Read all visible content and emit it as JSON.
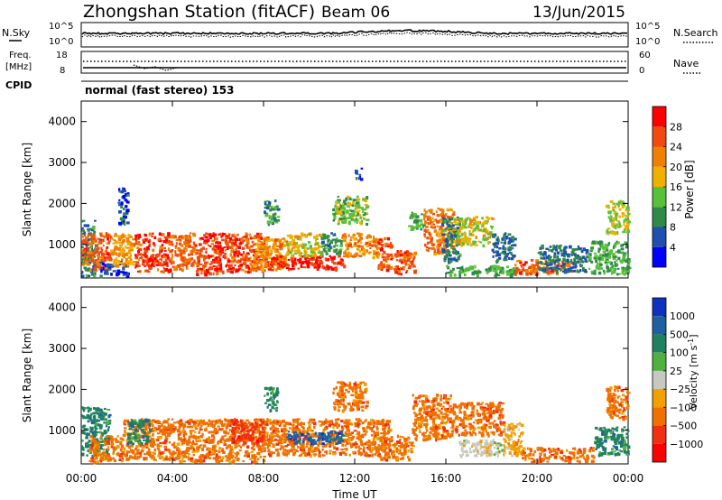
{
  "header": {
    "station": "Zhongshan Station (fitACF)",
    "beam": "Beam 06",
    "date": "13/Jun/2015"
  },
  "top_panels": {
    "nsky_label": "N.Sky",
    "nsearch_label": "N.Search",
    "nsky_ticks": [
      "10^5",
      "10^0"
    ],
    "nsearch_ticks": [
      "10^5",
      "10^0"
    ],
    "freq_label_1": "Freq.",
    "freq_label_2": "[MHz]",
    "freq_ticks": [
      "18",
      "8"
    ],
    "nave_label": "Nave",
    "nave_ticks": [
      "60",
      "0"
    ],
    "cpid_label": "CPID",
    "cpid_text": "normal (fast stereo) 153"
  },
  "colors": {
    "power_scale": [
      "#0000ff",
      "#1f4fb0",
      "#2f8a48",
      "#59c03a",
      "#f0b000",
      "#f08000",
      "#f04a10",
      "#ff0000"
    ],
    "velocity_scale": [
      "#1030c0",
      "#2060a0",
      "#208060",
      "#50b040",
      "#c8c8c0",
      "#f0a000",
      "#f07000",
      "#f03010",
      "#ff0000"
    ]
  },
  "chart_data": [
    {
      "type": "heatmap",
      "name": "power",
      "xlabel": "Time UT",
      "ylabel": "Slant Range [km]",
      "xlim": [
        0,
        24
      ],
      "ylim": [
        180,
        4500
      ],
      "x_ticks": [
        "00:00",
        "04:00",
        "08:00",
        "12:00",
        "16:00",
        "20:00",
        "00:00"
      ],
      "y_ticks": [
        "1000",
        "2000",
        "3000",
        "4000"
      ],
      "colorbar_label": "Power [dB]",
      "colorbar_ticks": [
        "4",
        "8",
        "12",
        "16",
        "20",
        "24",
        "28"
      ],
      "clim": [
        0,
        32
      ],
      "regions": [
        {
          "t": [
            0.0,
            0.6
          ],
          "r": [
            250,
            1600
          ],
          "v": 9
        },
        {
          "t": [
            0.0,
            1.3
          ],
          "r": [
            400,
            1300
          ],
          "v": 25
        },
        {
          "t": [
            0.8,
            2.0
          ],
          "r": [
            250,
            600
          ],
          "v": 6
        },
        {
          "t": [
            1.3,
            2.3
          ],
          "r": [
            500,
            1300
          ],
          "v": 20
        },
        {
          "t": [
            2.3,
            3.9
          ],
          "r": [
            350,
            1300
          ],
          "v": 27
        },
        {
          "t": [
            3.9,
            5.0
          ],
          "r": [
            400,
            1300
          ],
          "v": 24
        },
        {
          "t": [
            5.0,
            6.5
          ],
          "r": [
            300,
            1300
          ],
          "v": 27
        },
        {
          "t": [
            6.5,
            8.2
          ],
          "r": [
            350,
            1300
          ],
          "v": 26
        },
        {
          "t": [
            7.5,
            9.0
          ],
          "r": [
            400,
            1200
          ],
          "v": 21
        },
        {
          "t": [
            8.2,
            11.5
          ],
          "r": [
            400,
            750
          ],
          "v": 29
        },
        {
          "t": [
            9.0,
            10.5
          ],
          "r": [
            750,
            1300
          ],
          "v": 18
        },
        {
          "t": [
            10.5,
            11.4
          ],
          "r": [
            800,
            1300
          ],
          "v": 11
        },
        {
          "t": [
            11.4,
            13.0
          ],
          "r": [
            700,
            1300
          ],
          "v": 22
        },
        {
          "t": [
            13.0,
            13.6
          ],
          "r": [
            400,
            1200
          ],
          "v": 25
        },
        {
          "t": [
            13.7,
            14.6
          ],
          "r": [
            300,
            900
          ],
          "v": 26
        },
        {
          "t": [
            14.3,
            15.0
          ],
          "r": [
            1400,
            1800
          ],
          "v": 12
        },
        {
          "t": [
            15.0,
            16.3
          ],
          "r": [
            800,
            1900
          ],
          "v": 23
        },
        {
          "t": [
            15.8,
            16.6
          ],
          "r": [
            600,
            1700
          ],
          "v": 9
        },
        {
          "t": [
            16.3,
            18.0
          ],
          "r": [
            1000,
            1700
          ],
          "v": 17
        },
        {
          "t": [
            16.0,
            19.0
          ],
          "r": [
            260,
            500
          ],
          "v": 12
        },
        {
          "t": [
            18.0,
            19.0
          ],
          "r": [
            600,
            1300
          ],
          "v": 8
        },
        {
          "t": [
            19.0,
            21.5
          ],
          "r": [
            300,
            650
          ],
          "v": 25
        },
        {
          "t": [
            20.0,
            22.2
          ],
          "r": [
            350,
            1000
          ],
          "v": 8
        },
        {
          "t": [
            22.2,
            24.0
          ],
          "r": [
            300,
            1100
          ],
          "v": 12
        },
        {
          "t": [
            23.0,
            24.0
          ],
          "r": [
            1300,
            2100
          ],
          "v": 16
        },
        {
          "t": [
            1.6,
            2.0
          ],
          "r": [
            1500,
            2400
          ],
          "v": 6
        },
        {
          "t": [
            8.0,
            8.6
          ],
          "r": [
            1500,
            2100
          ],
          "v": 10
        },
        {
          "t": [
            11.0,
            12.5
          ],
          "r": [
            1500,
            2200
          ],
          "v": 14
        },
        {
          "t": [
            12.0,
            12.3
          ],
          "r": [
            2600,
            2900
          ],
          "v": 6
        }
      ]
    },
    {
      "type": "heatmap",
      "name": "velocity",
      "xlabel": "Time UT",
      "ylabel": "Slant Range [km]",
      "xlim": [
        0,
        24
      ],
      "ylim": [
        180,
        4500
      ],
      "x_ticks": [
        "00:00",
        "04:00",
        "08:00",
        "12:00",
        "16:00",
        "20:00",
        "00:00"
      ],
      "y_ticks": [
        "1000",
        "2000",
        "3000",
        "4000"
      ],
      "colorbar_label": "Velocity [m s",
      "colorbar_unit_sup": "-1",
      "colorbar_ticks": [
        "1000",
        "500",
        "100",
        "25",
        "−25",
        "−100",
        "−500",
        "−1000"
      ],
      "regions": [
        {
          "t": [
            0.0,
            1.2
          ],
          "r": [
            400,
            1600
          ],
          "v": 2
        },
        {
          "t": [
            0.3,
            1.8
          ],
          "r": [
            250,
            900
          ],
          "v": 6
        },
        {
          "t": [
            1.8,
            4.0
          ],
          "r": [
            300,
            1300
          ],
          "v": 6
        },
        {
          "t": [
            2.0,
            3.0
          ],
          "r": [
            700,
            1300
          ],
          "v": 2
        },
        {
          "t": [
            4.0,
            8.0
          ],
          "r": [
            250,
            1300
          ],
          "v": 6
        },
        {
          "t": [
            6.5,
            8.0
          ],
          "r": [
            700,
            1300
          ],
          "v": 7
        },
        {
          "t": [
            8.0,
            13.5
          ],
          "r": [
            400,
            1300
          ],
          "v": 6
        },
        {
          "t": [
            9.0,
            11.5
          ],
          "r": [
            700,
            1000
          ],
          "v": 1
        },
        {
          "t": [
            13.0,
            14.5
          ],
          "r": [
            300,
            900
          ],
          "v": 6
        },
        {
          "t": [
            14.5,
            16.2
          ],
          "r": [
            800,
            1900
          ],
          "v": 6
        },
        {
          "t": [
            16.2,
            18.5
          ],
          "r": [
            900,
            1700
          ],
          "v": 6
        },
        {
          "t": [
            16.5,
            18.5
          ],
          "r": [
            400,
            800
          ],
          "v": 4
        },
        {
          "t": [
            18.5,
            19.3
          ],
          "r": [
            400,
            1200
          ],
          "v": 5
        },
        {
          "t": [
            19.3,
            22.5
          ],
          "r": [
            250,
            600
          ],
          "v": 6
        },
        {
          "t": [
            22.5,
            24.0
          ],
          "r": [
            400,
            1100
          ],
          "v": 2
        },
        {
          "t": [
            23.0,
            24.0
          ],
          "r": [
            1300,
            2100
          ],
          "v": 6
        },
        {
          "t": [
            11.0,
            12.5
          ],
          "r": [
            1500,
            2200
          ],
          "v": 6
        },
        {
          "t": [
            8.0,
            8.6
          ],
          "r": [
            1500,
            2100
          ],
          "v": 2
        }
      ]
    }
  ]
}
